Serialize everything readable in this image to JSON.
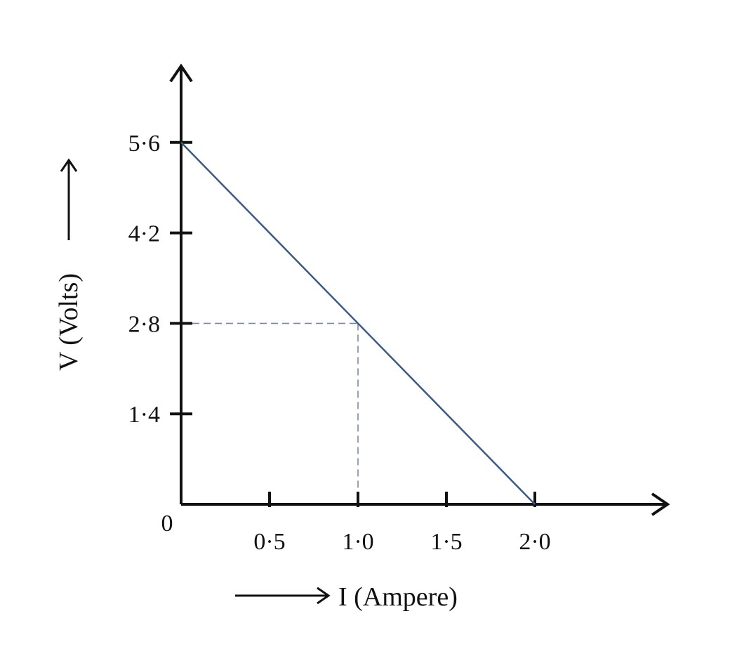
{
  "chart_data": {
    "type": "line",
    "xlabel": "I (Ampere)",
    "ylabel": "V (Volts)",
    "origin_label": "0",
    "x_ticks": [
      {
        "value": 0.5,
        "label": "0·5"
      },
      {
        "value": 1.0,
        "label": "1·0"
      },
      {
        "value": 1.5,
        "label": "1·5"
      },
      {
        "value": 2.0,
        "label": "2·0"
      }
    ],
    "y_ticks": [
      {
        "value": 1.4,
        "label": "1·4"
      },
      {
        "value": 2.8,
        "label": "2·8"
      },
      {
        "value": 4.2,
        "label": "4·2"
      },
      {
        "value": 5.6,
        "label": "5·6"
      }
    ],
    "xlim": [
      0,
      2.75
    ],
    "ylim": [
      0,
      7.0
    ],
    "series": [
      {
        "x": [
          0,
          2.0
        ],
        "y": [
          5.6,
          0
        ],
        "color": "#3b5a85"
      }
    ],
    "reference_point": {
      "x": 1.0,
      "y": 2.8
    },
    "grid": false,
    "axis_color": "#111111"
  }
}
